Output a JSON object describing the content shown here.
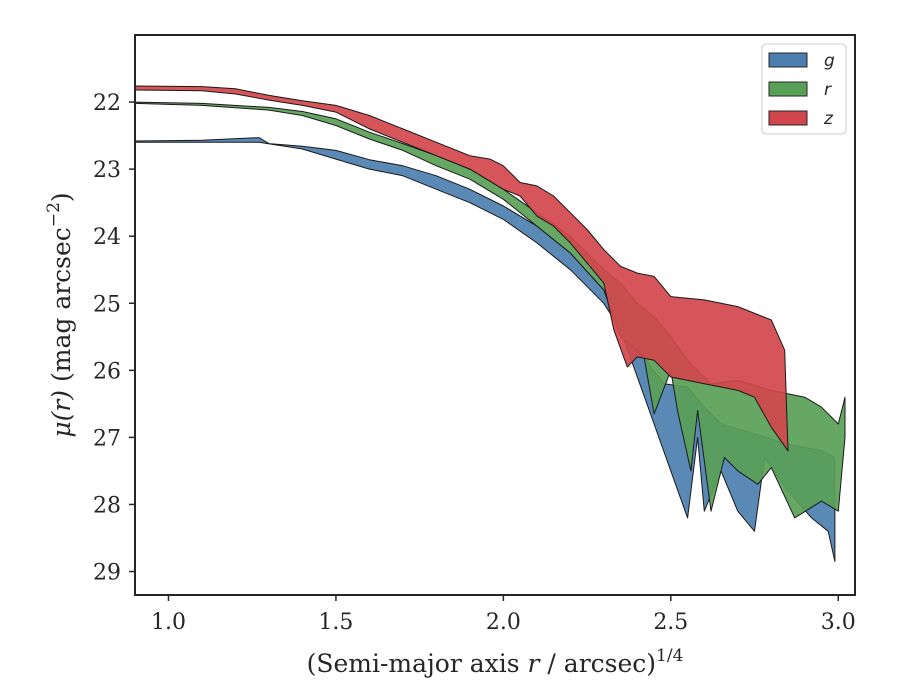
{
  "chart_data": {
    "type": "area",
    "xlabel_prefix": "(Semi-major axis ",
    "xlabel_var": "r",
    "xlabel_suffix": " / arcsec)",
    "xlabel_exponent": "1/4",
    "ylabel_mu": "μ",
    "ylabel_arg": "(r)",
    "ylabel_unit": "(mag arcsec",
    "ylabel_exponent": "−2",
    "ylabel_close": ")",
    "xlim": [
      0.9,
      3.05
    ],
    "ylim": [
      29.35,
      21.0
    ],
    "y_inverted": true,
    "grid": false,
    "legend_position": "top-right",
    "xticks": [
      1.0,
      1.5,
      2.0,
      2.5,
      3.0
    ],
    "xtick_labels": [
      "1.0",
      "1.5",
      "2.0",
      "2.5",
      "3.0"
    ],
    "yticks": [
      22,
      23,
      24,
      25,
      26,
      27,
      28,
      29
    ],
    "ytick_labels": [
      "22",
      "23",
      "24",
      "25",
      "26",
      "27",
      "28",
      "29"
    ],
    "series": [
      {
        "name": "g",
        "color": "#4c7fb0",
        "upper": [
          [
            0.9,
            22.58
          ],
          [
            1.1,
            22.57
          ],
          [
            1.27,
            22.53
          ],
          [
            1.3,
            22.62
          ],
          [
            1.4,
            22.66
          ],
          [
            1.5,
            22.72
          ],
          [
            1.6,
            22.86
          ],
          [
            1.7,
            22.95
          ],
          [
            1.8,
            23.1
          ],
          [
            1.9,
            23.3
          ],
          [
            2.0,
            23.55
          ],
          [
            2.1,
            23.85
          ],
          [
            2.2,
            24.25
          ],
          [
            2.3,
            24.8
          ],
          [
            2.36,
            25.3
          ],
          [
            2.44,
            25.95
          ],
          [
            2.48,
            26.2
          ],
          [
            2.55,
            26.25
          ],
          [
            2.6,
            26.55
          ],
          [
            2.65,
            26.8
          ],
          [
            2.75,
            26.95
          ],
          [
            2.85,
            27.1
          ],
          [
            2.95,
            27.2
          ],
          [
            2.99,
            27.3
          ]
        ],
        "lower": [
          [
            0.9,
            22.6
          ],
          [
            1.1,
            22.6
          ],
          [
            1.27,
            22.6
          ],
          [
            1.4,
            22.7
          ],
          [
            1.5,
            22.85
          ],
          [
            1.6,
            23.0
          ],
          [
            1.7,
            23.1
          ],
          [
            1.8,
            23.3
          ],
          [
            1.9,
            23.5
          ],
          [
            2.0,
            23.75
          ],
          [
            2.1,
            24.1
          ],
          [
            2.2,
            24.5
          ],
          [
            2.3,
            25.0
          ],
          [
            2.35,
            25.4
          ],
          [
            2.45,
            26.8
          ],
          [
            2.5,
            27.5
          ],
          [
            2.55,
            28.2
          ],
          [
            2.58,
            27.0
          ],
          [
            2.6,
            28.1
          ],
          [
            2.65,
            27.5
          ],
          [
            2.7,
            28.1
          ],
          [
            2.75,
            28.4
          ],
          [
            2.78,
            27.3
          ],
          [
            2.85,
            27.8
          ],
          [
            2.92,
            28.2
          ],
          [
            2.97,
            28.4
          ],
          [
            2.99,
            28.85
          ]
        ]
      },
      {
        "name": "r",
        "color": "#59a057",
        "upper": [
          [
            0.9,
            22.0
          ],
          [
            1.1,
            22.02
          ],
          [
            1.3,
            22.08
          ],
          [
            1.4,
            22.14
          ],
          [
            1.5,
            22.25
          ],
          [
            1.6,
            22.45
          ],
          [
            1.7,
            22.62
          ],
          [
            1.8,
            22.8
          ],
          [
            1.9,
            23.0
          ],
          [
            2.0,
            23.3
          ],
          [
            2.1,
            23.65
          ],
          [
            2.2,
            24.0
          ],
          [
            2.3,
            24.5
          ],
          [
            2.35,
            24.7
          ],
          [
            2.4,
            25.0
          ],
          [
            2.45,
            25.2
          ],
          [
            2.5,
            25.5
          ],
          [
            2.55,
            25.85
          ],
          [
            2.62,
            26.2
          ],
          [
            2.7,
            26.15
          ],
          [
            2.8,
            26.3
          ],
          [
            2.9,
            26.4
          ],
          [
            2.95,
            26.55
          ],
          [
            3.0,
            26.8
          ],
          [
            3.02,
            26.4
          ]
        ],
        "lower": [
          [
            0.9,
            22.02
          ],
          [
            1.1,
            22.05
          ],
          [
            1.3,
            22.12
          ],
          [
            1.4,
            22.2
          ],
          [
            1.5,
            22.35
          ],
          [
            1.6,
            22.55
          ],
          [
            1.7,
            22.72
          ],
          [
            1.8,
            22.95
          ],
          [
            1.9,
            23.15
          ],
          [
            2.0,
            23.45
          ],
          [
            2.1,
            23.85
          ],
          [
            2.2,
            24.25
          ],
          [
            2.3,
            24.8
          ],
          [
            2.35,
            25.5
          ],
          [
            2.42,
            25.8
          ],
          [
            2.45,
            26.65
          ],
          [
            2.5,
            26.0
          ],
          [
            2.52,
            26.6
          ],
          [
            2.56,
            27.5
          ],
          [
            2.58,
            26.6
          ],
          [
            2.62,
            28.1
          ],
          [
            2.66,
            27.3
          ],
          [
            2.7,
            27.5
          ],
          [
            2.76,
            27.7
          ],
          [
            2.8,
            27.45
          ],
          [
            2.87,
            28.2
          ],
          [
            2.95,
            27.95
          ],
          [
            3.0,
            28.1
          ],
          [
            3.02,
            27.0
          ]
        ]
      },
      {
        "name": "z",
        "color": "#d1464c",
        "upper": [
          [
            0.9,
            21.76
          ],
          [
            1.1,
            21.77
          ],
          [
            1.2,
            21.8
          ],
          [
            1.3,
            21.9
          ],
          [
            1.4,
            21.98
          ],
          [
            1.5,
            22.05
          ],
          [
            1.6,
            22.2
          ],
          [
            1.7,
            22.4
          ],
          [
            1.8,
            22.6
          ],
          [
            1.9,
            22.8
          ],
          [
            1.96,
            22.85
          ],
          [
            2.0,
            22.95
          ],
          [
            2.05,
            23.2
          ],
          [
            2.1,
            23.25
          ],
          [
            2.15,
            23.4
          ],
          [
            2.2,
            23.65
          ],
          [
            2.25,
            23.9
          ],
          [
            2.3,
            24.2
          ],
          [
            2.35,
            24.45
          ],
          [
            2.4,
            24.55
          ],
          [
            2.45,
            24.6
          ],
          [
            2.5,
            24.9
          ],
          [
            2.6,
            24.95
          ],
          [
            2.7,
            25.05
          ],
          [
            2.8,
            25.25
          ],
          [
            2.84,
            25.7
          ]
        ],
        "lower": [
          [
            0.9,
            21.82
          ],
          [
            1.1,
            21.83
          ],
          [
            1.2,
            21.88
          ],
          [
            1.3,
            21.97
          ],
          [
            1.4,
            22.05
          ],
          [
            1.5,
            22.15
          ],
          [
            1.6,
            22.4
          ],
          [
            1.7,
            22.6
          ],
          [
            1.8,
            22.8
          ],
          [
            1.9,
            23.0
          ],
          [
            2.0,
            23.3
          ],
          [
            2.05,
            23.4
          ],
          [
            2.1,
            23.7
          ],
          [
            2.15,
            23.85
          ],
          [
            2.2,
            24.1
          ],
          [
            2.25,
            24.4
          ],
          [
            2.3,
            24.7
          ],
          [
            2.33,
            25.4
          ],
          [
            2.37,
            25.95
          ],
          [
            2.4,
            25.8
          ],
          [
            2.45,
            25.85
          ],
          [
            2.5,
            26.1
          ],
          [
            2.6,
            26.2
          ],
          [
            2.7,
            26.3
          ],
          [
            2.75,
            26.4
          ],
          [
            2.8,
            26.85
          ],
          [
            2.85,
            27.2
          ]
        ]
      }
    ]
  }
}
